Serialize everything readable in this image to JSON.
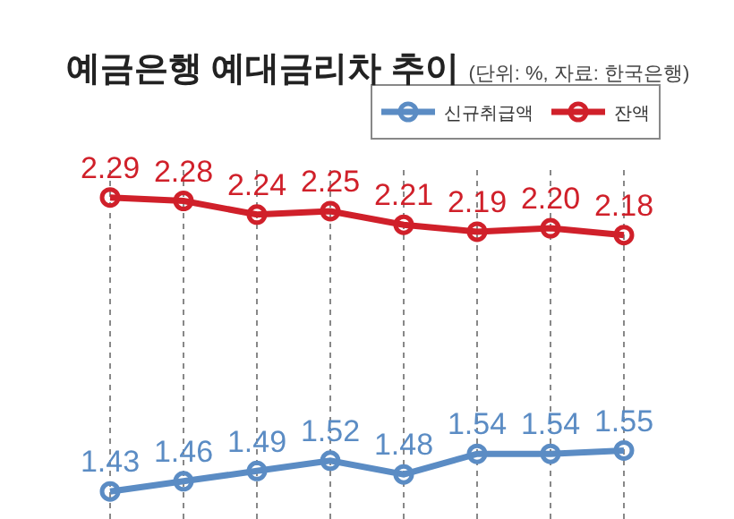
{
  "chart_data": {
    "type": "line",
    "title": "예금은행 예대금리차 추이",
    "subtitle": "(단위: %, 자료: 한국은행)",
    "categories": [
      null,
      null,
      null,
      null,
      null,
      null,
      null,
      null
    ],
    "series": [
      {
        "name": "신규취급액",
        "color": "#5b8cc4",
        "values": [
          1.43,
          1.46,
          1.49,
          1.52,
          1.48,
          1.54,
          1.54,
          1.55
        ],
        "value_labels": [
          "1.43",
          "1.46",
          "1.49",
          "1.52",
          "1.48",
          "1.54",
          "1.54",
          "1.55"
        ]
      },
      {
        "name": "잔액",
        "color": "#d0202a",
        "values": [
          2.29,
          2.28,
          2.24,
          2.25,
          2.21,
          2.19,
          2.2,
          2.18
        ],
        "value_labels": [
          "2.29",
          "2.28",
          "2.24",
          "2.25",
          "2.21",
          "2.19",
          "2.20",
          "2.18"
        ]
      }
    ],
    "marker": "circle",
    "line_style": "solid",
    "grid": "x",
    "legend": "top right"
  }
}
